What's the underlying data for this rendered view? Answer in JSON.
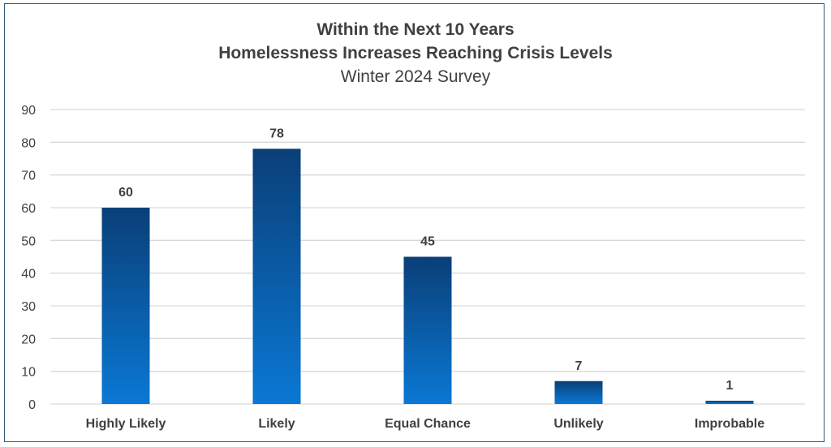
{
  "chart_data": {
    "type": "bar",
    "title": [
      "Within the Next 10 Years",
      "Homelessness Increases Reaching Crisis Levels"
    ],
    "subtitle": "Winter 2024 Survey",
    "categories": [
      "Highly Likely",
      "Likely",
      "Equal Chance",
      "Unlikely",
      "Improbable"
    ],
    "values": [
      60,
      78,
      45,
      7,
      1
    ],
    "data_labels": [
      "60",
      "78",
      "45",
      "7",
      "1"
    ],
    "ylim": [
      0,
      90
    ],
    "yticks": [
      "0",
      "10",
      "20",
      "30",
      "40",
      "50",
      "60",
      "70",
      "80",
      "90"
    ],
    "grid": true,
    "legend": "none",
    "bar_color_top": "#0a3f78",
    "bar_color_bottom": "#0a78d4",
    "grid_color": "#d9d9d9",
    "text_color": "#404040"
  }
}
